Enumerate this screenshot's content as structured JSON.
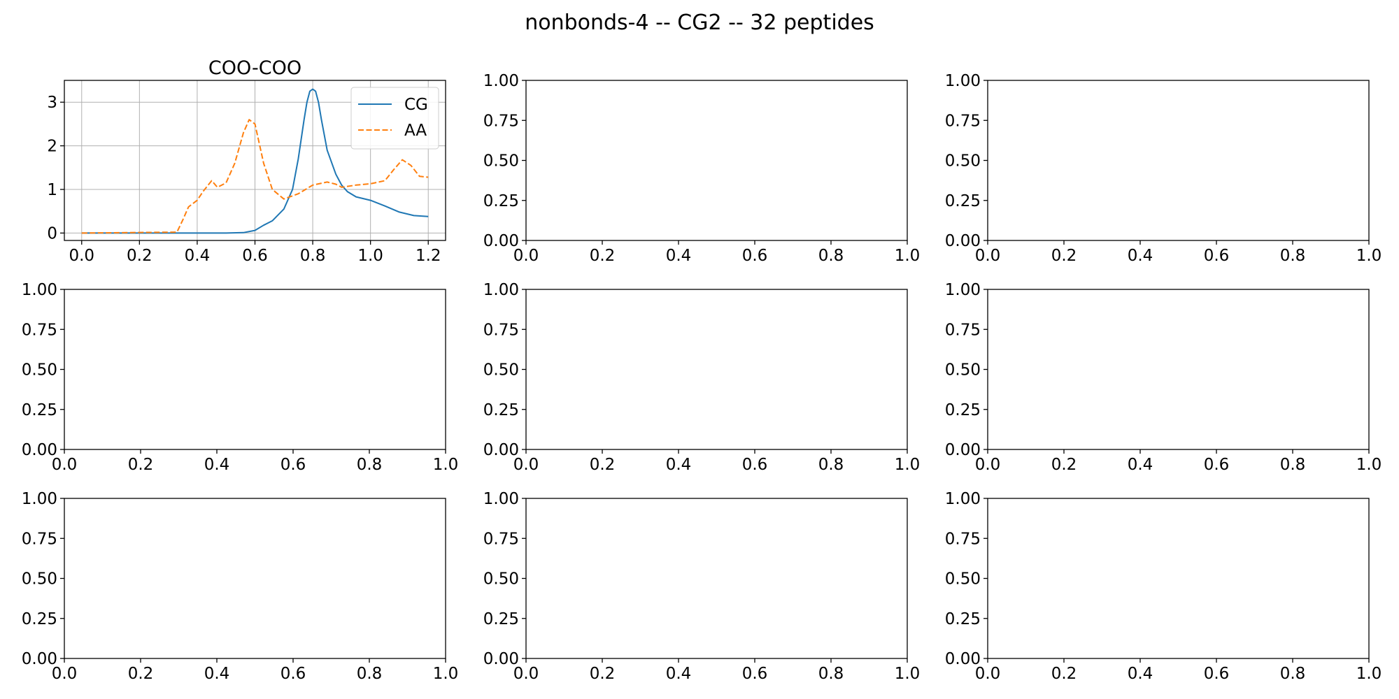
{
  "figure": {
    "suptitle": "nonbonds-4 -- CG2 -- 32 peptides"
  },
  "chart_data": [
    {
      "type": "line",
      "title": "COO-COO",
      "xlabel": "",
      "ylabel": "",
      "xlim": [
        -0.06,
        1.26
      ],
      "ylim": [
        -0.17,
        3.5
      ],
      "xticks": [
        0.0,
        0.2,
        0.4,
        0.6,
        0.8,
        1.0,
        1.2
      ],
      "xtick_labels": [
        "0.0",
        "0.2",
        "0.4",
        "0.6",
        "0.8",
        "1.0",
        "1.2"
      ],
      "yticks": [
        0,
        1,
        2,
        3
      ],
      "ytick_labels": [
        "0",
        "1",
        "2",
        "3"
      ],
      "grid": true,
      "legend": "top-right",
      "series": [
        {
          "name": "CG",
          "color": "#1f77b4",
          "linestyle": "solid",
          "x": [
            0.0,
            0.5,
            0.56,
            0.6,
            0.63,
            0.66,
            0.7,
            0.73,
            0.75,
            0.77,
            0.78,
            0.79,
            0.8,
            0.81,
            0.82,
            0.83,
            0.85,
            0.88,
            0.9,
            0.92,
            0.95,
            1.0,
            1.05,
            1.1,
            1.15,
            1.2
          ],
          "y": [
            0.0,
            0.0,
            0.01,
            0.06,
            0.18,
            0.28,
            0.55,
            1.0,
            1.7,
            2.6,
            3.0,
            3.25,
            3.3,
            3.25,
            3.0,
            2.6,
            1.9,
            1.35,
            1.1,
            0.95,
            0.83,
            0.75,
            0.62,
            0.48,
            0.4,
            0.38
          ]
        },
        {
          "name": "AA",
          "color": "#ff7f0e",
          "linestyle": "dashed",
          "x": [
            0.0,
            0.33,
            0.35,
            0.37,
            0.4,
            0.42,
            0.45,
            0.47,
            0.5,
            0.53,
            0.56,
            0.58,
            0.6,
            0.63,
            0.66,
            0.7,
            0.75,
            0.8,
            0.85,
            0.88,
            0.9,
            0.95,
            1.0,
            1.05,
            1.08,
            1.11,
            1.14,
            1.17,
            1.2
          ],
          "y": [
            0.0,
            0.02,
            0.3,
            0.6,
            0.75,
            0.95,
            1.2,
            1.05,
            1.15,
            1.6,
            2.3,
            2.6,
            2.5,
            1.6,
            1.0,
            0.78,
            0.9,
            1.1,
            1.17,
            1.12,
            1.05,
            1.1,
            1.13,
            1.2,
            1.45,
            1.68,
            1.55,
            1.3,
            1.28
          ]
        }
      ]
    },
    {
      "type": "line",
      "title": "",
      "xlim": [
        0,
        1
      ],
      "ylim": [
        0,
        1
      ],
      "grid": false,
      "xtick_labels": [
        "0.0",
        "0.2",
        "0.4",
        "0.6",
        "0.8",
        "1.0"
      ],
      "ytick_labels": [
        "0.00",
        "0.25",
        "0.50",
        "0.75",
        "1.00"
      ],
      "series": []
    },
    {
      "type": "line",
      "title": "",
      "xlim": [
        0,
        1
      ],
      "ylim": [
        0,
        1
      ],
      "grid": false,
      "xtick_labels": [
        "0.0",
        "0.2",
        "0.4",
        "0.6",
        "0.8",
        "1.0"
      ],
      "ytick_labels": [
        "0.00",
        "0.25",
        "0.50",
        "0.75",
        "1.00"
      ],
      "series": []
    },
    {
      "type": "line",
      "title": "",
      "xlim": [
        0,
        1
      ],
      "ylim": [
        0,
        1
      ],
      "grid": false,
      "xtick_labels": [
        "0.0",
        "0.2",
        "0.4",
        "0.6",
        "0.8",
        "1.0"
      ],
      "ytick_labels": [
        "0.00",
        "0.25",
        "0.50",
        "0.75",
        "1.00"
      ],
      "series": []
    },
    {
      "type": "line",
      "title": "",
      "xlim": [
        0,
        1
      ],
      "ylim": [
        0,
        1
      ],
      "grid": false,
      "xtick_labels": [
        "0.0",
        "0.2",
        "0.4",
        "0.6",
        "0.8",
        "1.0"
      ],
      "ytick_labels": [
        "0.00",
        "0.25",
        "0.50",
        "0.75",
        "1.00"
      ],
      "series": []
    },
    {
      "type": "line",
      "title": "",
      "xlim": [
        0,
        1
      ],
      "ylim": [
        0,
        1
      ],
      "grid": false,
      "xtick_labels": [
        "0.0",
        "0.2",
        "0.4",
        "0.6",
        "0.8",
        "1.0"
      ],
      "ytick_labels": [
        "0.00",
        "0.25",
        "0.50",
        "0.75",
        "1.00"
      ],
      "series": []
    },
    {
      "type": "line",
      "title": "",
      "xlim": [
        0,
        1
      ],
      "ylim": [
        0,
        1
      ],
      "grid": false,
      "xtick_labels": [
        "0.0",
        "0.2",
        "0.4",
        "0.6",
        "0.8",
        "1.0"
      ],
      "ytick_labels": [
        "0.00",
        "0.25",
        "0.50",
        "0.75",
        "1.00"
      ],
      "series": []
    },
    {
      "type": "line",
      "title": "",
      "xlim": [
        0,
        1
      ],
      "ylim": [
        0,
        1
      ],
      "grid": false,
      "xtick_labels": [
        "0.0",
        "0.2",
        "0.4",
        "0.6",
        "0.8",
        "1.0"
      ],
      "ytick_labels": [
        "0.00",
        "0.25",
        "0.50",
        "0.75",
        "1.00"
      ],
      "series": []
    },
    {
      "type": "line",
      "title": "",
      "xlim": [
        0,
        1
      ],
      "ylim": [
        0,
        1
      ],
      "grid": false,
      "xtick_labels": [
        "0.0",
        "0.2",
        "0.4",
        "0.6",
        "0.8",
        "1.0"
      ],
      "ytick_labels": [
        "0.00",
        "0.25",
        "0.50",
        "0.75",
        "1.00"
      ],
      "series": []
    }
  ]
}
